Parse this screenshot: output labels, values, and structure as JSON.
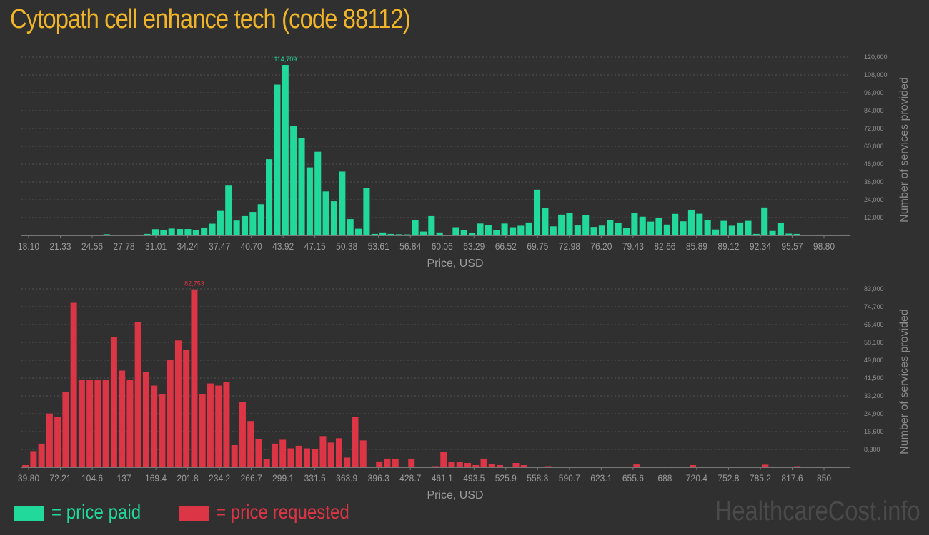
{
  "title": "Cytopath cell enhance tech (code 88112)",
  "legend": {
    "paid_label": "= price paid",
    "requested_label": "= price requested",
    "paid_color": "#21d99b",
    "requested_color": "#dc3545"
  },
  "watermark": "HealthcareCost.info",
  "chart_data": [
    {
      "type": "bar",
      "series_name": "price paid",
      "color": "#21d99b",
      "xlabel": "Price, USD",
      "ylabel": "Number of services provided",
      "ylim": [
        0,
        120000
      ],
      "yticks": [
        12000,
        24000,
        36000,
        48000,
        60000,
        72000,
        84000,
        96000,
        108000,
        120000
      ],
      "ytick_labels": [
        "12,000",
        "24,000",
        "36,000",
        "48,000",
        "60,000",
        "72,000",
        "84,000",
        "96,000",
        "108,000",
        "120,000"
      ],
      "xtick_labels": [
        "18.10",
        "21.33",
        "24.56",
        "27.78",
        "31.01",
        "34.24",
        "37.47",
        "40.70",
        "43.92",
        "47.15",
        "50.38",
        "53.61",
        "56.84",
        "60.06",
        "63.29",
        "66.52",
        "69.75",
        "72.98",
        "76.20",
        "79.43",
        "82.66",
        "85.89",
        "89.12",
        "92.34",
        "95.57",
        "98.80"
      ],
      "peak_label": "114,709",
      "values": [
        400,
        0,
        0,
        0,
        0,
        300,
        0,
        0,
        0,
        400,
        800,
        0,
        0,
        300,
        500,
        1000,
        4200,
        3500,
        4600,
        4300,
        4300,
        3800,
        5300,
        7900,
        16500,
        33500,
        10000,
        13000,
        15800,
        21000,
        51300,
        101500,
        114709,
        73500,
        65500,
        45800,
        56300,
        29600,
        23000,
        43000,
        11000,
        4500,
        31800,
        1000,
        2000,
        1000,
        800,
        700,
        10500,
        2600,
        13000,
        2000,
        0,
        5500,
        3500,
        1600,
        8000,
        7000,
        3800,
        8000,
        5500,
        6500,
        8700,
        30800,
        18500,
        6100,
        14000,
        15300,
        6700,
        13500,
        5700,
        6600,
        10200,
        8400,
        5000,
        15000,
        12600,
        9300,
        12000,
        7300,
        14500,
        9500,
        17300,
        14600,
        10300,
        4000,
        9800,
        6500,
        8700,
        9800,
        1000,
        18800,
        3000,
        8200,
        1200,
        1000,
        0,
        0,
        500,
        0,
        0,
        500
      ]
    },
    {
      "type": "bar",
      "series_name": "price requested",
      "color": "#dc3545",
      "xlabel": "Price, USD",
      "ylabel": "Number of services provided",
      "ylim": [
        0,
        83000
      ],
      "yticks": [
        8300,
        16600,
        24900,
        33200,
        41500,
        49800,
        58100,
        66400,
        74700,
        83000
      ],
      "ytick_labels": [
        "8,300",
        "16,600",
        "24,900",
        "33,200",
        "41,500",
        "49,800",
        "58,100",
        "66,400",
        "74,700",
        "83,000"
      ],
      "xtick_labels": [
        "39.80",
        "72.21",
        "104.6",
        "137",
        "169.4",
        "201.8",
        "234.2",
        "266.7",
        "299.1",
        "331.5",
        "363.9",
        "396.3",
        "428.7",
        "461.1",
        "493.5",
        "525.9",
        "558.3",
        "590.7",
        "623.1",
        "655.6",
        "688",
        "720.4",
        "752.8",
        "785.2",
        "817.6",
        "850"
      ],
      "peak_label": "82,753",
      "values": [
        1000,
        7500,
        11000,
        25000,
        23500,
        35000,
        76500,
        40500,
        40500,
        40500,
        40500,
        60500,
        45000,
        40500,
        67500,
        44500,
        38000,
        34000,
        50000,
        59000,
        54500,
        82753,
        34000,
        39000,
        38000,
        39500,
        10300,
        30500,
        21500,
        13000,
        3700,
        11000,
        12800,
        8800,
        10000,
        8800,
        8500,
        14500,
        11500,
        13500,
        4500,
        23500,
        12500,
        0,
        2700,
        4000,
        4000,
        0,
        4000,
        0,
        0,
        500,
        7000,
        2500,
        2500,
        2000,
        1000,
        4000,
        1500,
        1000,
        0,
        2000,
        1000,
        0,
        0,
        500,
        0,
        0,
        0,
        0,
        0,
        0,
        0,
        0,
        0,
        0,
        1300,
        0,
        0,
        0,
        0,
        0,
        0,
        1000,
        0,
        0,
        0,
        0,
        0,
        0,
        0,
        0,
        1200,
        300,
        0,
        0,
        500,
        0,
        0,
        0,
        0,
        0,
        300
      ]
    }
  ]
}
